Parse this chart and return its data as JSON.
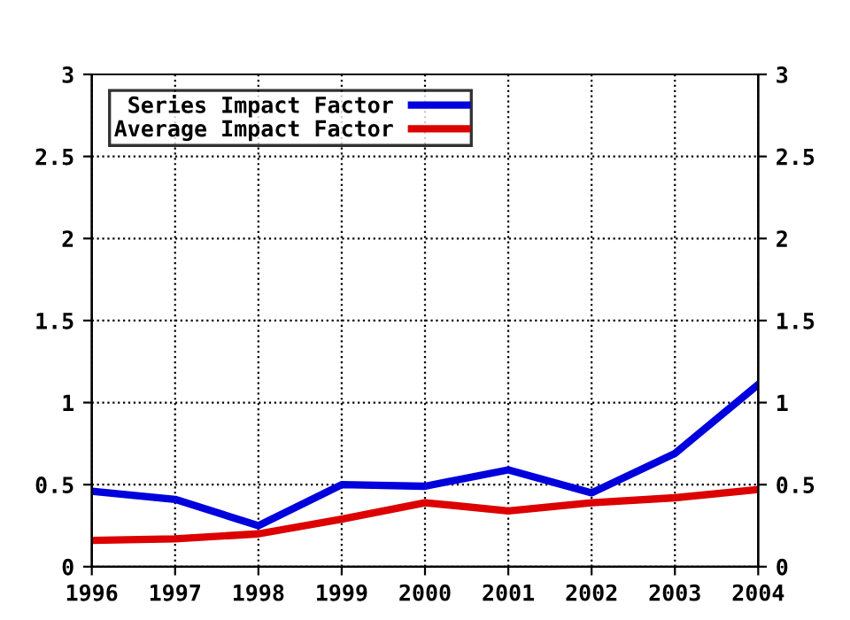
{
  "chart_data": {
    "type": "line",
    "x": [
      1996,
      1997,
      1998,
      1999,
      2000,
      2001,
      2002,
      2003,
      2004
    ],
    "series": [
      {
        "name": "Series Impact Factor",
        "color": "#0000dd",
        "values": [
          0.46,
          0.41,
          0.25,
          0.5,
          0.49,
          0.59,
          0.45,
          0.69,
          1.11
        ]
      },
      {
        "name": "Average Impact Factor",
        "color": "#dd0000",
        "values": [
          0.16,
          0.17,
          0.2,
          0.29,
          0.39,
          0.34,
          0.39,
          0.42,
          0.47
        ]
      }
    ],
    "xlim": [
      1996,
      2004
    ],
    "xticks": [
      1996,
      1997,
      1998,
      1999,
      2000,
      2001,
      2002,
      2003,
      2004
    ],
    "ylim": [
      0,
      3
    ],
    "yticks": [
      0,
      {
        "value": 0.5,
        "label": "0.5"
      },
      1,
      {
        "value": 1.5,
        "label": "1.5"
      },
      2,
      {
        "value": 2.5,
        "label": "2.5"
      },
      3
    ],
    "y2lim": [
      0,
      3
    ],
    "y2ticks": [
      0,
      {
        "value": 0.5,
        "label": "0.5"
      },
      1,
      {
        "value": 1.5,
        "label": "1.5"
      },
      2,
      {
        "value": 2.5,
        "label": "2.5"
      },
      3
    ],
    "grid": true,
    "legend": "top left",
    "marker": "none",
    "line_style": "solid"
  }
}
